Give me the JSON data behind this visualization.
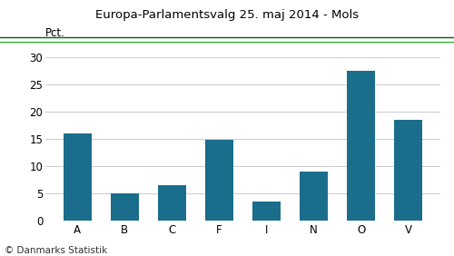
{
  "title": "Europa-Parlamentsvalg 25. maj 2014 - Mols",
  "categories": [
    "A",
    "B",
    "C",
    "F",
    "I",
    "N",
    "O",
    "V"
  ],
  "values": [
    16.0,
    5.0,
    6.5,
    14.7,
    3.5,
    9.0,
    27.5,
    18.5
  ],
  "bar_color": "#1a6e8c",
  "ylabel": "Pct.",
  "ylim": [
    0,
    32
  ],
  "yticks": [
    0,
    5,
    10,
    15,
    20,
    25,
    30
  ],
  "footer": "© Danmarks Statistik",
  "title_line_color": "#008000",
  "grid_color": "#cccccc",
  "background_color": "#ffffff",
  "title_fontsize": 9.5,
  "footer_fontsize": 7.5,
  "tick_fontsize": 8.5,
  "ylabel_fontsize": 8.5
}
